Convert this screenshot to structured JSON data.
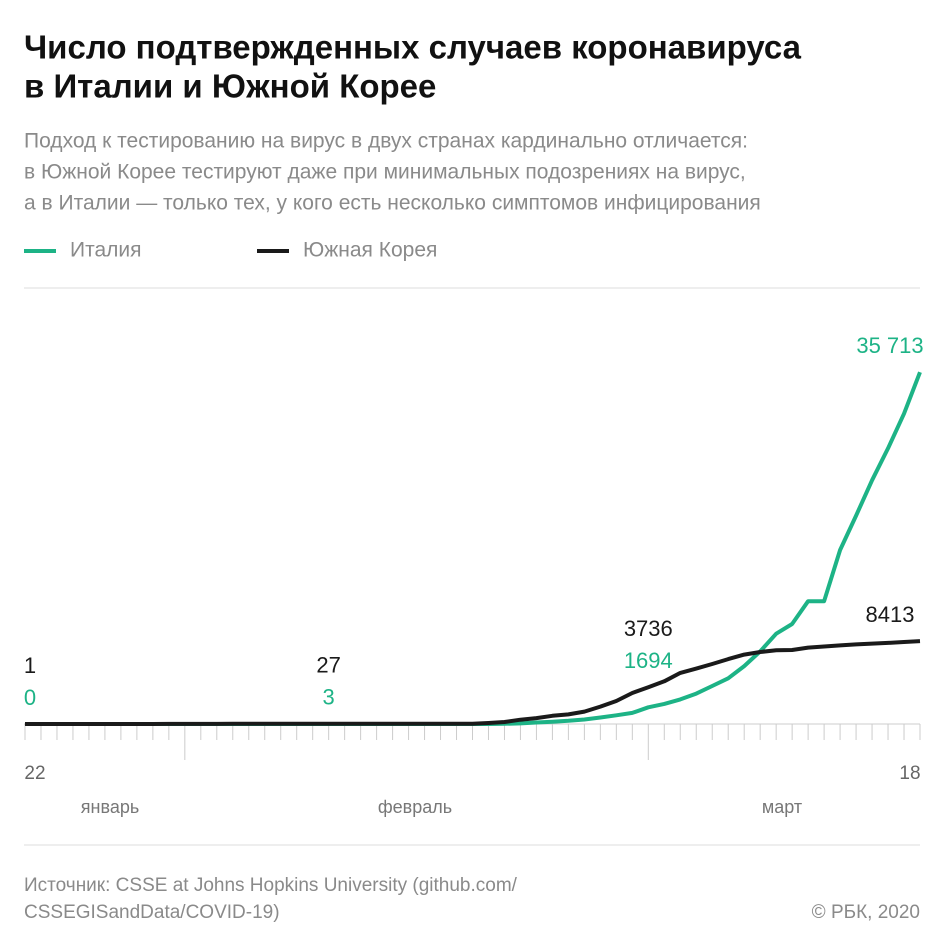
{
  "chart_data": {
    "type": "line",
    "title": [
      "Число подтвержденных случаев коронавируса",
      "в Италии и Южной Корее"
    ],
    "subtitle": [
      "Подход к тестированию на вирус в двух странах кардинально отличается:",
      "в Южной Корее тестируют даже при минимальных подозрениях на вирус,",
      "а в Италии — только тех, у кого есть несколько симптомов инфицирования"
    ],
    "categories": [
      "22",
      null,
      null,
      null,
      null,
      null,
      null,
      null,
      null,
      null,
      null,
      null,
      null,
      null,
      null,
      null,
      null,
      null,
      null,
      null,
      null,
      null,
      null,
      null,
      null,
      null,
      null,
      null,
      null,
      null,
      null,
      null,
      null,
      null,
      null,
      null,
      null,
      null,
      null,
      null,
      null,
      null,
      null,
      null,
      null,
      null,
      null,
      null,
      null,
      null,
      null,
      null,
      null,
      null,
      null,
      null,
      "18"
    ],
    "month_labels": [
      "январь",
      "февраль",
      "март"
    ],
    "series": [
      {
        "name": "Италия",
        "color": "#1db386",
        "values": [
          0,
          0,
          0,
          0,
          0,
          0,
          0,
          0,
          0,
          2,
          2,
          2,
          2,
          2,
          2,
          2,
          3,
          3,
          3,
          3,
          3,
          3,
          3,
          3,
          3,
          3,
          3,
          3,
          3,
          3,
          20,
          62,
          155,
          229,
          322,
          453,
          655,
          888,
          1128,
          1694,
          2036,
          2502,
          3089,
          3858,
          4636,
          5883,
          7375,
          9172,
          10149,
          12462,
          12462,
          17660,
          21157,
          24747,
          27980,
          31506,
          35713
        ],
        "value_labels": [
          "0",
          null,
          null,
          null,
          null,
          null,
          null,
          null,
          null,
          null,
          null,
          null,
          null,
          null,
          null,
          null,
          null,
          null,
          null,
          "3",
          null,
          null,
          null,
          null,
          null,
          null,
          null,
          null,
          null,
          null,
          null,
          null,
          null,
          null,
          null,
          null,
          null,
          null,
          null,
          "1694",
          null,
          null,
          null,
          null,
          null,
          null,
          null,
          null,
          null,
          null,
          null,
          null,
          null,
          null,
          null,
          null,
          "35 713"
        ]
      },
      {
        "name": "Южная Корея",
        "color": "#1a1a1a",
        "values": [
          1,
          1,
          2,
          2,
          3,
          4,
          4,
          4,
          4,
          11,
          12,
          15,
          15,
          16,
          19,
          23,
          24,
          24,
          25,
          27,
          28,
          28,
          28,
          28,
          28,
          29,
          30,
          31,
          31,
          104,
          204,
          433,
          602,
          833,
          977,
          1261,
          1766,
          2337,
          3150,
          3736,
          4335,
          5186,
          5621,
          6088,
          6593,
          7041,
          7314,
          7478,
          7513,
          7755,
          7869,
          7979,
          8086,
          8162,
          8236,
          8320,
          8413
        ],
        "value_labels": [
          "1",
          null,
          null,
          null,
          null,
          null,
          null,
          null,
          null,
          null,
          null,
          null,
          null,
          null,
          null,
          null,
          null,
          null,
          null,
          "27",
          null,
          null,
          null,
          null,
          null,
          null,
          null,
          null,
          null,
          null,
          null,
          null,
          null,
          null,
          null,
          null,
          null,
          null,
          null,
          "3736",
          null,
          null,
          null,
          null,
          null,
          null,
          null,
          null,
          null,
          null,
          null,
          null,
          null,
          null,
          null,
          null,
          "8413"
        ]
      }
    ],
    "ylim": [
      0,
      40000
    ],
    "source": [
      "Источник: CSSE at Johns Hopkins University (github.com/",
      "CSSEGISandData/COVID-19)"
    ],
    "copyright": "© РБК, 2020"
  }
}
